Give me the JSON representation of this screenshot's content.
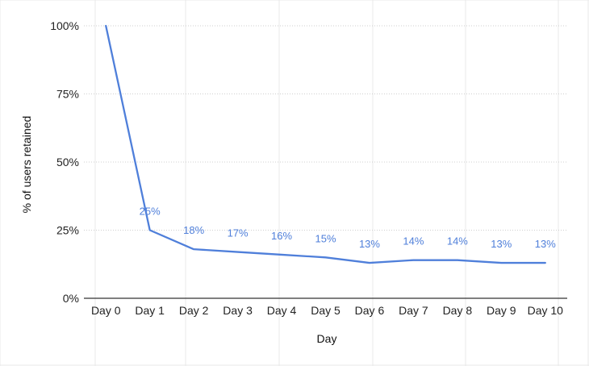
{
  "chart_data": {
    "type": "line",
    "title": "",
    "xlabel": "Day",
    "ylabel": "% of users retained",
    "ylim": [
      0,
      100
    ],
    "y_ticks": [
      "0%",
      "25%",
      "50%",
      "75%",
      "100%"
    ],
    "y_tick_values": [
      0,
      25,
      50,
      75,
      100
    ],
    "categories": [
      "Day 0",
      "Day 1",
      "Day 2",
      "Day 3",
      "Day 4",
      "Day 5",
      "Day 6",
      "Day 7",
      "Day 8",
      "Day 9",
      "Day 10"
    ],
    "series": [
      {
        "name": "% of users retained",
        "values": [
          100,
          25,
          18,
          17,
          16,
          15,
          13,
          14,
          14,
          13,
          13
        ],
        "labels": [
          "",
          "25%",
          "18%",
          "17%",
          "16%",
          "15%",
          "13%",
          "14%",
          "14%",
          "13%",
          "13%"
        ],
        "color": "#4f7fda"
      }
    ],
    "grid": true,
    "legend": "none"
  }
}
